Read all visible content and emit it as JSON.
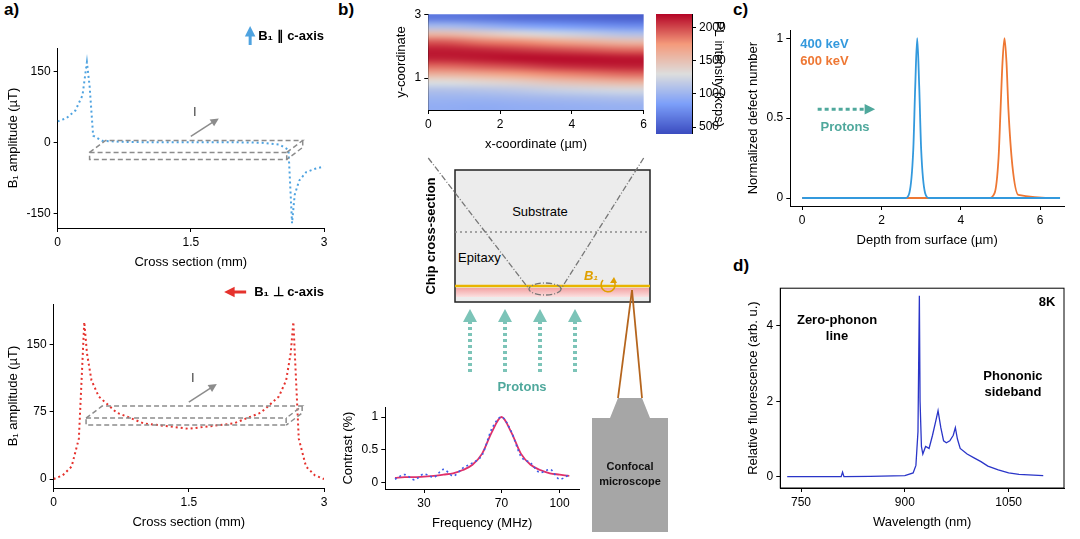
{
  "panel_labels": [
    "a)",
    "b)",
    "c)",
    "d)"
  ],
  "diagram": {
    "title": "Chip cross-section",
    "substrate": "Substrate",
    "epitaxy": "Epitaxy",
    "field": "B₁",
    "beam": "Protons",
    "instrument": "Confocal microscope"
  },
  "chart_data": [
    {
      "type": "line",
      "x_label": "Cross section (mm)",
      "y_label": "B₁ amplitude (µT)",
      "annotations": [
        "B₁ ∥ c-axis",
        "I"
      ],
      "xlim": [
        0,
        3
      ],
      "xticks": [
        0,
        1.5,
        3
      ],
      "ylim": [
        -180,
        200
      ],
      "yticks": [
        -150,
        0,
        150
      ],
      "grid": false,
      "series": [
        {
          "color": "#4fa3e0",
          "line_style": "dotted",
          "x": [
            0,
            0.1,
            0.2,
            0.28,
            0.33,
            0.36,
            0.4,
            0.5,
            0.7,
            1,
            1.5,
            2,
            2.3,
            2.5,
            2.6,
            2.64,
            2.67,
            2.72,
            2.8,
            2.9,
            3
          ],
          "values": [
            45,
            52,
            68,
            100,
            170,
            120,
            15,
            4,
            2,
            1,
            1,
            1,
            0,
            -4,
            -15,
            -170,
            -110,
            -80,
            -62,
            -55,
            -50
          ]
        }
      ]
    },
    {
      "type": "line",
      "x_label": "Cross section (mm)",
      "y_label": "B₁ amplitude (µT)",
      "annotations": [
        "B₁ ⊥ c-axis",
        "I"
      ],
      "xlim": [
        0,
        3
      ],
      "xticks": [
        0,
        1.5,
        3
      ],
      "ylim": [
        -10,
        195
      ],
      "yticks": [
        0,
        75,
        150
      ],
      "grid": false,
      "series": [
        {
          "color": "#e5322d",
          "line_style": "dotted",
          "x": [
            0,
            0.1,
            0.2,
            0.28,
            0.34,
            0.37,
            0.42,
            0.5,
            0.7,
            1,
            1.5,
            2,
            2.3,
            2.5,
            2.58,
            2.63,
            2.66,
            2.72,
            2.8,
            2.9,
            3
          ],
          "values": [
            0,
            4,
            14,
            45,
            175,
            140,
            110,
            92,
            74,
            62,
            56,
            62,
            74,
            92,
            110,
            140,
            175,
            45,
            14,
            4,
            0
          ]
        }
      ]
    },
    {
      "type": "heatmap",
      "x_label": "x-coordinate (µm)",
      "y_label": "y-coordinate",
      "xlim": [
        0,
        6
      ],
      "xticks": [
        0,
        2,
        4,
        6
      ],
      "ylim": [
        0,
        3
      ],
      "yticks": [
        1,
        3
      ],
      "grid": false,
      "x_edges": [
        0,
        1,
        2,
        3,
        4,
        5,
        6
      ],
      "y_edges": [
        0,
        0.25,
        0.5,
        0.75,
        1,
        1.25,
        1.5,
        1.75,
        2,
        2.25,
        2.5,
        2.75,
        3
      ],
      "cells": [
        [
          950,
          940,
          950,
          960,
          970,
          980
        ],
        [
          1000,
          1000,
          1020,
          1040,
          1060,
          1080
        ],
        [
          1100,
          1120,
          1150,
          1200,
          1230,
          1260
        ],
        [
          1300,
          1350,
          1400,
          1480,
          1530,
          1580
        ],
        [
          1600,
          1650,
          1720,
          1800,
          1850,
          1900
        ],
        [
          1900,
          1950,
          2000,
          2070,
          2100,
          2120
        ],
        [
          2120,
          2150,
          2180,
          2180,
          2170,
          2150
        ],
        [
          2130,
          2100,
          2050,
          2000,
          1950,
          1900
        ],
        [
          1950,
          1850,
          1800,
          1700,
          1620,
          1550
        ],
        [
          1550,
          1450,
          1350,
          1250,
          1180,
          1100
        ],
        [
          1050,
          980,
          900,
          850,
          800,
          760
        ],
        [
          650,
          620,
          580,
          560,
          540,
          520
        ]
      ],
      "colorbar": {
        "label": "PL intensity (kcps)",
        "range": [
          400,
          2200
        ],
        "ticks": [
          500,
          1000,
          1500,
          2000
        ]
      }
    },
    {
      "type": "line",
      "x_label": "Frequency (MHz)",
      "y_label": "Contrast (%)",
      "xlim": [
        10,
        110
      ],
      "xticks": [
        30,
        70,
        100
      ],
      "ylim": [
        -0.1,
        1.15
      ],
      "yticks": [
        0,
        0.5,
        1
      ],
      "grid": false,
      "series": [
        {
          "color": "#3d5ce6",
          "line_style": "dotted",
          "x": [
            15,
            20,
            25,
            30,
            35,
            40,
            45,
            50,
            55,
            60,
            65,
            70,
            75,
            80,
            85,
            90,
            95,
            100,
            105
          ],
          "values": [
            0.05,
            0.12,
            0.04,
            0.13,
            0.08,
            0.2,
            0.1,
            0.22,
            0.3,
            0.42,
            0.82,
            1.0,
            0.78,
            0.4,
            0.3,
            0.15,
            0.2,
            0.05,
            0.12
          ]
        },
        {
          "color": "#e0306a",
          "line_style": "solid",
          "x": [
            15,
            20,
            25,
            30,
            35,
            40,
            45,
            50,
            55,
            60,
            65,
            70,
            75,
            80,
            85,
            90,
            95,
            100,
            105
          ],
          "values": [
            0.07,
            0.08,
            0.08,
            0.09,
            0.1,
            0.12,
            0.14,
            0.19,
            0.27,
            0.44,
            0.77,
            1.0,
            0.77,
            0.44,
            0.27,
            0.19,
            0.14,
            0.12,
            0.1
          ]
        }
      ]
    },
    {
      "type": "line",
      "x_label": "Depth from surface (µm)",
      "y_label": "Normalized defect number",
      "annotations": [
        "Protons"
      ],
      "legend": "upper left",
      "xlim": [
        -0.3,
        6.6
      ],
      "xticks": [
        0,
        2,
        4,
        6
      ],
      "ylim": [
        -0.05,
        1.05
      ],
      "yticks": [
        0,
        0.5,
        1
      ],
      "grid": false,
      "series": [
        {
          "name": "400 keV",
          "color": "#3399dd",
          "line_style": "solid",
          "x": [
            0,
            2.6,
            2.7,
            2.8,
            2.85,
            2.9,
            2.95,
            3,
            3.1,
            3.2,
            6.5
          ],
          "values": [
            0,
            0,
            0.03,
            0.3,
            0.7,
            1,
            0.7,
            0.3,
            0.03,
            0,
            0
          ]
        },
        {
          "name": "600 keV",
          "color": "#ee7733",
          "line_style": "solid",
          "x": [
            0,
            4.7,
            4.85,
            4.95,
            5,
            5.05,
            5.1,
            5.15,
            5.2,
            5.3,
            5.45,
            6.5
          ],
          "values": [
            0,
            0,
            0.03,
            0.25,
            0.55,
            0.85,
            1,
            0.85,
            0.55,
            0.2,
            0.02,
            0
          ]
        }
      ]
    },
    {
      "type": "line",
      "x_label": "Wavelength (nm)",
      "y_label": "Relative fluorescence (arb. u.)",
      "annotations": [
        "8K",
        "Zero-phonon line",
        "Phononic sideband"
      ],
      "xlim": [
        720,
        1130
      ],
      "xticks": [
        750,
        900,
        1050
      ],
      "ylim": [
        -0.3,
        5
      ],
      "yticks": [
        0,
        2,
        4
      ],
      "grid": false,
      "series": [
        {
          "color": "#2a35c8",
          "line_style": "solid",
          "x": [
            730,
            750,
            800,
            808,
            810,
            812,
            850,
            900,
            912,
            916,
            919,
            920,
            921,
            922,
            924,
            926,
            930,
            935,
            940,
            945,
            948,
            952,
            956,
            960,
            965,
            970,
            973,
            976,
            980,
            990,
            1000,
            1010,
            1020,
            1035,
            1050,
            1065,
            1100
          ],
          "values": [
            0,
            0,
            0,
            0,
            0.12,
            0,
            0.01,
            0.03,
            0.1,
            0.3,
            1.2,
            3.0,
            4.8,
            2.0,
            0.8,
            0.6,
            0.8,
            0.75,
            1.1,
            1.5,
            1.75,
            1.3,
            0.95,
            0.9,
            0.95,
            1.1,
            1.3,
            1.0,
            0.75,
            0.6,
            0.5,
            0.4,
            0.28,
            0.18,
            0.1,
            0.06,
            0.03
          ]
        }
      ]
    }
  ]
}
